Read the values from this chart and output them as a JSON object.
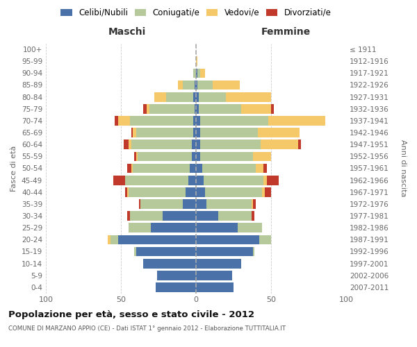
{
  "age_groups": [
    "0-4",
    "5-9",
    "10-14",
    "15-19",
    "20-24",
    "25-29",
    "30-34",
    "35-39",
    "40-44",
    "45-49",
    "50-54",
    "55-59",
    "60-64",
    "65-69",
    "70-74",
    "75-79",
    "80-84",
    "85-89",
    "90-94",
    "95-99",
    "100+"
  ],
  "birth_years": [
    "2007-2011",
    "2002-2006",
    "1997-2001",
    "1992-1996",
    "1987-1991",
    "1982-1986",
    "1977-1981",
    "1972-1976",
    "1967-1971",
    "1962-1966",
    "1957-1961",
    "1952-1956",
    "1947-1951",
    "1942-1946",
    "1937-1941",
    "1932-1936",
    "1927-1931",
    "1922-1926",
    "1917-1921",
    "1912-1916",
    "≤ 1911"
  ],
  "maschi": {
    "celibi": [
      27,
      26,
      35,
      40,
      52,
      30,
      22,
      9,
      7,
      5,
      4,
      3,
      3,
      2,
      2,
      1,
      2,
      1,
      0,
      0,
      0
    ],
    "coniugati": [
      0,
      0,
      0,
      1,
      5,
      15,
      22,
      28,
      38,
      42,
      38,
      36,
      40,
      38,
      42,
      30,
      18,
      8,
      2,
      0,
      0
    ],
    "vedovi": [
      0,
      0,
      0,
      0,
      2,
      0,
      0,
      0,
      1,
      0,
      1,
      1,
      2,
      2,
      8,
      2,
      8,
      3,
      0,
      0,
      0
    ],
    "divorziati": [
      0,
      0,
      0,
      0,
      0,
      0,
      2,
      1,
      1,
      8,
      3,
      1,
      3,
      1,
      2,
      2,
      0,
      0,
      0,
      0,
      0
    ]
  },
  "femmine": {
    "nubili": [
      25,
      24,
      30,
      38,
      42,
      28,
      15,
      7,
      6,
      5,
      4,
      3,
      3,
      3,
      3,
      2,
      2,
      1,
      1,
      0,
      0
    ],
    "coniugate": [
      0,
      0,
      0,
      1,
      8,
      16,
      22,
      30,
      38,
      40,
      36,
      35,
      40,
      38,
      45,
      28,
      18,
      10,
      2,
      0,
      0
    ],
    "vedove": [
      0,
      0,
      0,
      0,
      0,
      0,
      0,
      1,
      2,
      2,
      5,
      12,
      25,
      28,
      38,
      20,
      30,
      18,
      3,
      1,
      0
    ],
    "divorziate": [
      0,
      0,
      0,
      0,
      0,
      0,
      2,
      2,
      4,
      8,
      2,
      0,
      2,
      0,
      0,
      2,
      0,
      0,
      0,
      0,
      0
    ]
  },
  "colors": {
    "celibi": "#4a72a8",
    "coniugati": "#b5c99a",
    "vedovi": "#f5c96a",
    "divorziati": "#c0392b"
  },
  "xlim": 100,
  "title": "Popolazione per età, sesso e stato civile - 2012",
  "subtitle": "COMUNE DI MARZANO APPIO (CE) - Dati ISTAT 1° gennaio 2012 - Elaborazione TUTTITALIA.IT",
  "ylabel_left": "Fasce di età",
  "ylabel_right": "Anni di nascita",
  "xlabel_left": "Maschi",
  "xlabel_right": "Femmine"
}
